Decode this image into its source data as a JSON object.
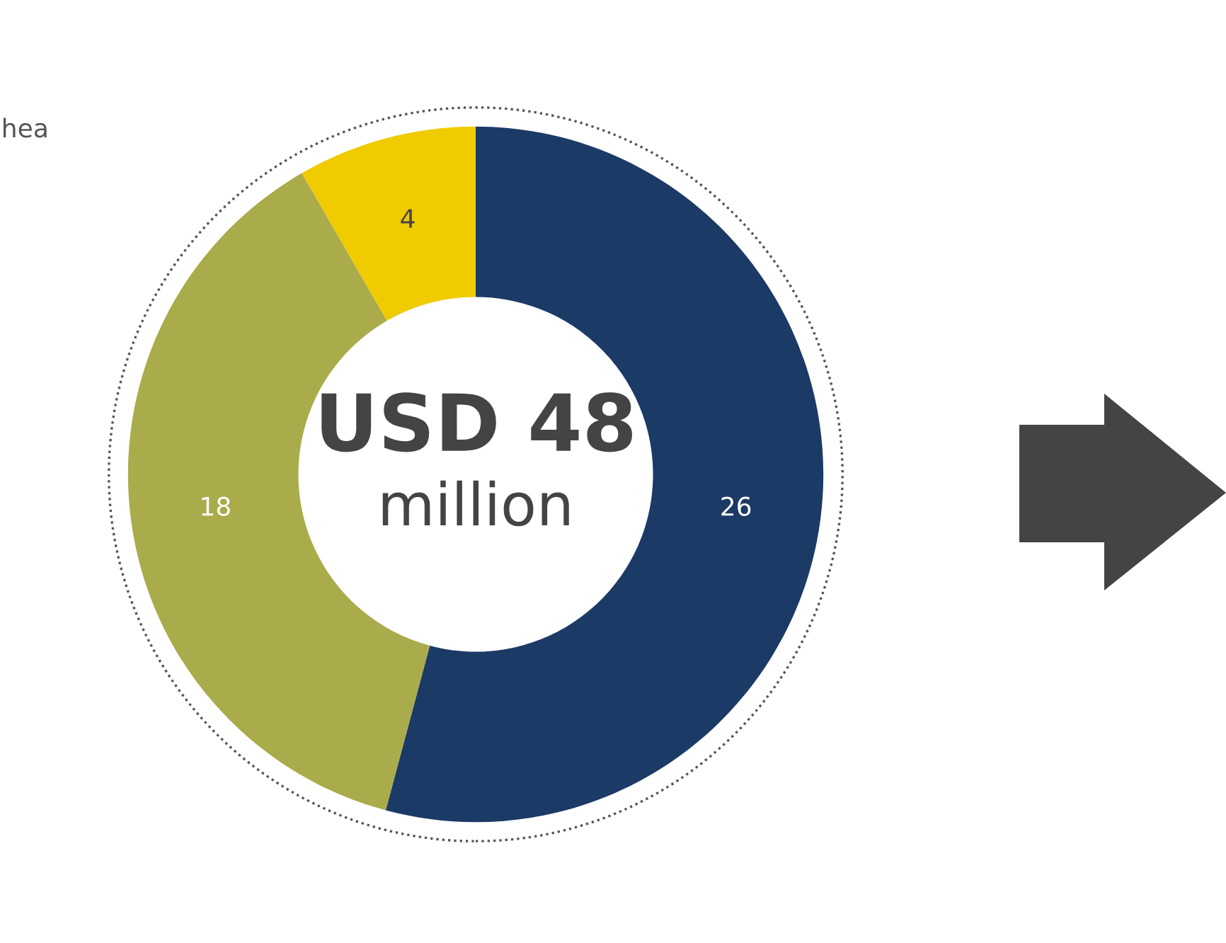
{
  "chart_data": {
    "type": "donut",
    "categories": [
      null,
      null,
      null
    ],
    "values": [
      26,
      18,
      4
    ],
    "colors": [
      "#1b3a66",
      "#aaab4a",
      "#f0cb00"
    ],
    "data_labels": true,
    "annotations": [
      "USD 48",
      "million",
      "hea"
    ]
  }
}
